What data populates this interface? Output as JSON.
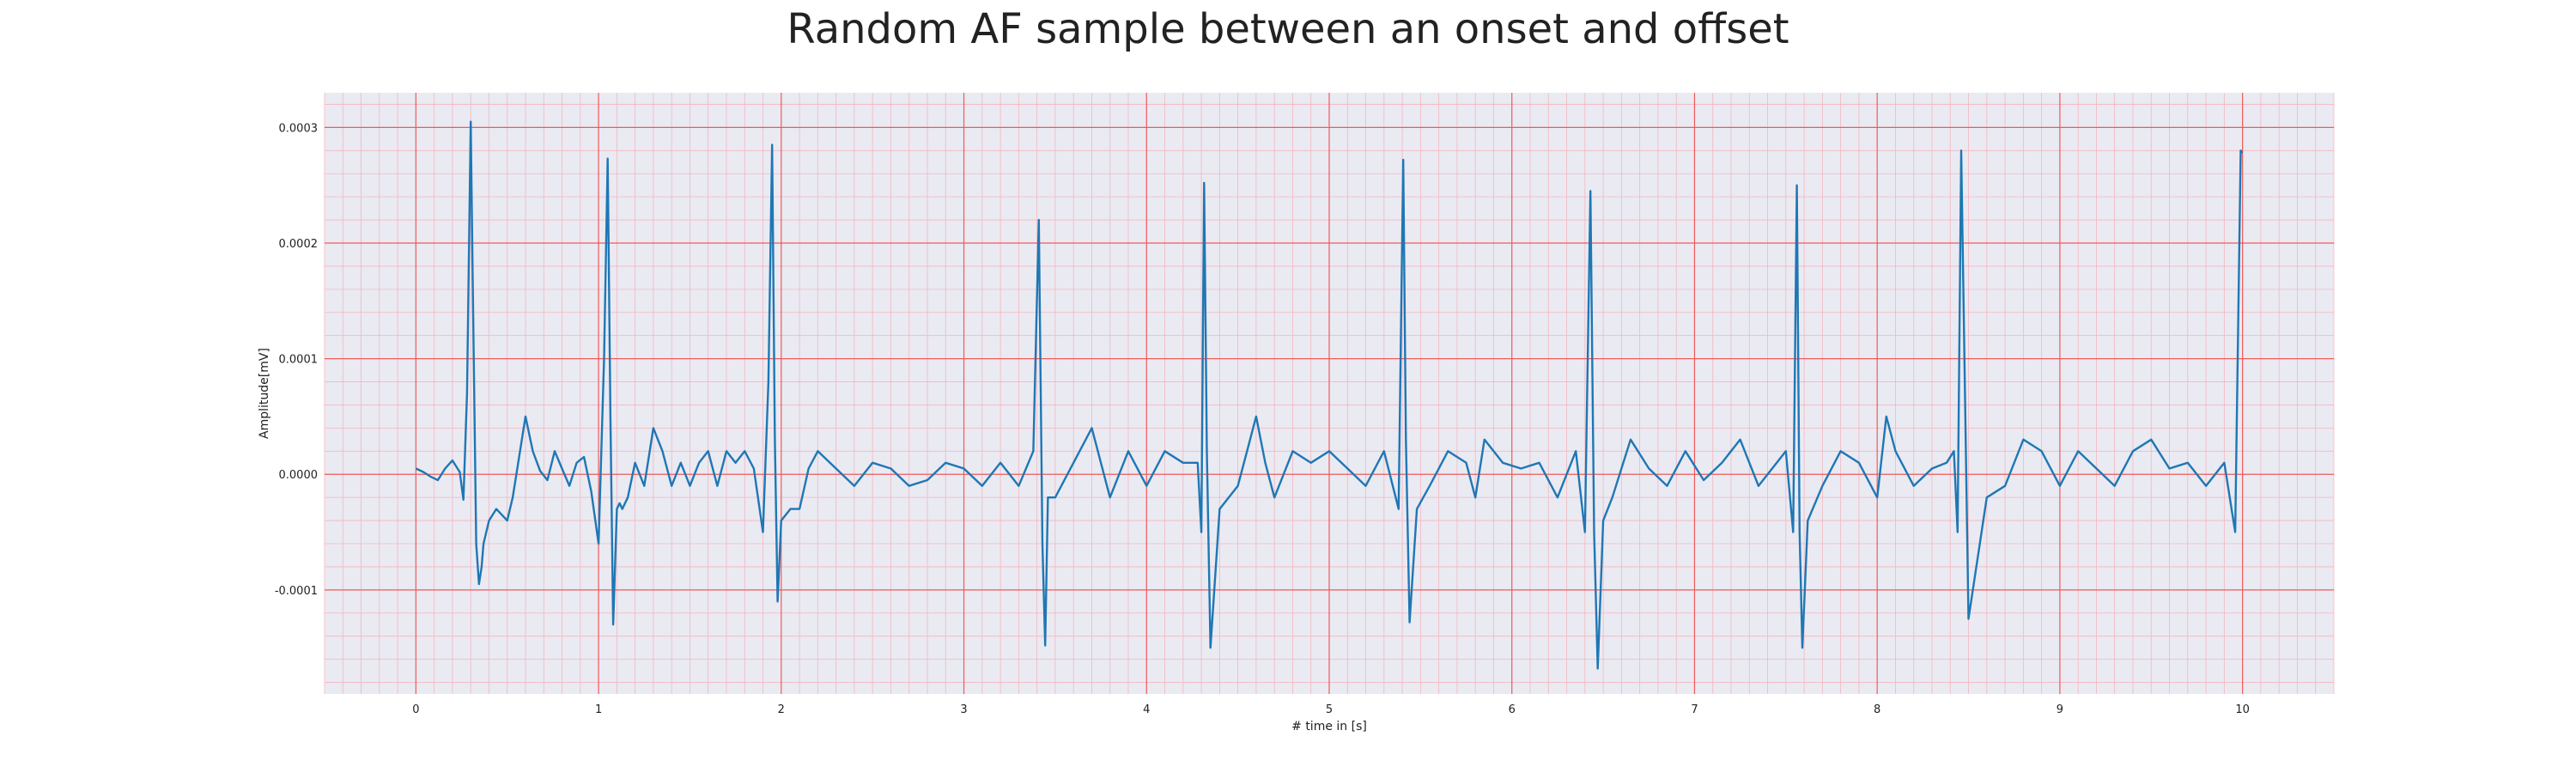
{
  "chart_data": {
    "type": "line",
    "title": "Random AF sample between an onset and offset",
    "xlabel": "# time in [s]",
    "ylabel": "Amplitude[mV]",
    "xlim": [
      -0.5,
      10.5
    ],
    "ylim": [
      -0.00019,
      0.00033
    ],
    "x_ticks": [
      0,
      1,
      2,
      3,
      4,
      5,
      6,
      7,
      8,
      9,
      10
    ],
    "x_tick_labels": [
      "0",
      "1",
      "2",
      "3",
      "4",
      "5",
      "6",
      "7",
      "8",
      "9",
      "10"
    ],
    "y_ticks": [
      0.0003,
      0.0002,
      0.0001,
      0.0,
      -0.0001
    ],
    "y_tick_labels": [
      "0.0003",
      "0.0002",
      "0.0001",
      "0.0000",
      "-0.0001"
    ],
    "grid": true,
    "minor_grid": true,
    "colors": {
      "background": "#eaeaf2",
      "line": "#1f77b4",
      "major_grid": "#ef5a5a",
      "minor_grid": "#f4b6bf"
    },
    "series": [
      {
        "x": [
          0.0,
          0.04,
          0.08,
          0.12,
          0.16,
          0.2,
          0.24,
          0.26,
          0.28,
          0.3,
          0.31,
          0.33,
          0.345,
          0.36,
          0.37,
          0.4,
          0.44,
          0.5,
          0.53,
          0.56,
          0.6,
          0.64,
          0.68,
          0.72,
          0.76,
          0.8,
          0.84,
          0.88,
          0.92,
          0.96,
          1.0,
          1.03,
          1.05,
          1.065,
          1.08,
          1.1,
          1.115,
          1.13,
          1.16,
          1.2,
          1.25,
          1.3,
          1.35,
          1.4,
          1.45,
          1.5,
          1.55,
          1.6,
          1.65,
          1.7,
          1.75,
          1.8,
          1.85,
          1.9,
          1.93,
          1.95,
          1.965,
          1.98,
          2.0,
          2.05,
          2.1,
          2.15,
          2.2,
          2.3,
          2.4,
          2.5,
          2.6,
          2.7,
          2.8,
          2.9,
          3.0,
          3.1,
          3.2,
          3.3,
          3.38,
          3.41,
          3.43,
          3.445,
          3.46,
          3.5,
          3.6,
          3.7,
          3.75,
          3.8,
          3.9,
          4.0,
          4.1,
          4.2,
          4.28,
          4.3,
          4.315,
          4.33,
          4.35,
          4.4,
          4.5,
          4.55,
          4.6,
          4.65,
          4.7,
          4.8,
          4.9,
          5.0,
          5.1,
          5.2,
          5.3,
          5.38,
          5.405,
          5.42,
          5.44,
          5.48,
          5.55,
          5.65,
          5.75,
          5.8,
          5.85,
          5.95,
          6.05,
          6.15,
          6.25,
          6.35,
          6.4,
          6.43,
          6.45,
          6.47,
          6.5,
          6.55,
          6.65,
          6.75,
          6.85,
          6.95,
          7.05,
          7.15,
          7.25,
          7.35,
          7.45,
          7.5,
          7.54,
          7.56,
          7.575,
          7.59,
          7.62,
          7.7,
          7.8,
          7.9,
          8.0,
          8.05,
          8.1,
          8.2,
          8.3,
          8.38,
          8.42,
          8.44,
          8.46,
          8.5,
          8.6,
          8.7,
          8.8,
          8.9,
          9.0,
          9.1,
          9.2,
          9.3,
          9.4,
          9.5,
          9.6,
          9.7,
          9.8,
          9.9,
          9.96,
          9.99,
          10.0
        ],
        "y": [
          5e-06,
          2e-06,
          -2e-06,
          -5e-06,
          5e-06,
          1.2e-05,
          2e-06,
          -2.2e-05,
          7e-05,
          0.000305,
          0.00018,
          -6e-05,
          -9.5e-05,
          -8e-05,
          -6e-05,
          -4e-05,
          -3e-05,
          -4e-05,
          -2e-05,
          1e-05,
          5e-05,
          2e-05,
          3e-06,
          -5e-06,
          2e-05,
          5e-06,
          -1e-05,
          1e-05,
          1.5e-05,
          -1.5e-05,
          -6e-05,
          0.0001,
          0.000273,
          5e-05,
          -0.00013,
          -3e-05,
          -2.5e-05,
          -3e-05,
          -2e-05,
          1e-05,
          -1e-05,
          4e-05,
          2e-05,
          -1e-05,
          1e-05,
          -1e-05,
          1e-05,
          2e-05,
          -1e-05,
          2e-05,
          1e-05,
          2e-05,
          5e-06,
          -5e-05,
          8e-05,
          0.000285,
          3e-05,
          -0.00011,
          -4e-05,
          -3e-05,
          -3e-05,
          5e-06,
          2e-05,
          5e-06,
          -1e-05,
          1e-05,
          5e-06,
          -1e-05,
          -5e-06,
          1e-05,
          5e-06,
          -1e-05,
          1e-05,
          -1e-05,
          2e-05,
          0.00022,
          -6e-05,
          -0.000148,
          -2e-05,
          -2e-05,
          1e-05,
          4e-05,
          1e-05,
          -2e-05,
          2e-05,
          -1e-05,
          2e-05,
          1e-05,
          1e-05,
          -5e-05,
          0.000252,
          2e-05,
          -0.00015,
          -3e-05,
          -1e-05,
          2e-05,
          5e-05,
          1e-05,
          -2e-05,
          2e-05,
          1e-05,
          2e-05,
          5e-06,
          -1e-05,
          2e-05,
          -3e-05,
          0.000272,
          3e-05,
          -0.000128,
          -3e-05,
          -1e-05,
          2e-05,
          1e-05,
          -2e-05,
          3e-05,
          1e-05,
          5e-06,
          1e-05,
          -2e-05,
          2e-05,
          -5e-05,
          0.000245,
          -5e-05,
          -0.000168,
          -4e-05,
          -2e-05,
          3e-05,
          5e-06,
          -1e-05,
          2e-05,
          -5e-06,
          1e-05,
          3e-05,
          -1e-05,
          1e-05,
          2e-05,
          -5e-05,
          0.00025,
          -5e-05,
          -0.00015,
          -4e-05,
          -1e-05,
          2e-05,
          1e-05,
          -2e-05,
          5e-05,
          2e-05,
          -1e-05,
          5e-06,
          1e-05,
          2e-05,
          -5e-05,
          0.00028,
          -0.000125,
          -2e-05,
          -1e-05,
          3e-05,
          2e-05,
          -1e-05,
          2e-05,
          5e-06,
          -1e-05,
          2e-05,
          3e-05,
          5e-06,
          1e-05,
          -1e-05,
          1e-05,
          -5e-05,
          0.00028,
          0.000278
        ]
      }
    ]
  }
}
